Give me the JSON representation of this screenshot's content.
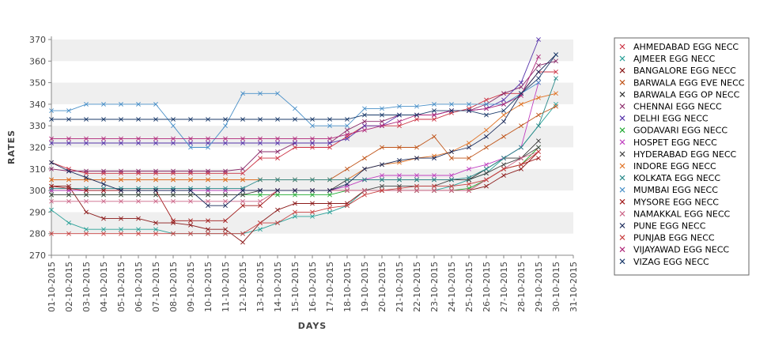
{
  "chart_data": {
    "type": "line",
    "xlabel": "DAYS",
    "ylabel": "RATES",
    "ylim": [
      270,
      370
    ],
    "yticks": [
      270,
      280,
      290,
      300,
      310,
      320,
      330,
      340,
      350,
      360,
      370
    ],
    "grid": "alternating horizontal bands",
    "legend_position": "right",
    "categories": [
      "01-10-2015",
      "02-10-2015",
      "03-10-2015",
      "04-10-2015",
      "05-10-2015",
      "06-10-2015",
      "07-10-2015",
      "08-10-2015",
      "09-10-2015",
      "10-10-2015",
      "11-10-2015",
      "12-10-2015",
      "13-10-2015",
      "14-10-2015",
      "15-10-2015",
      "16-10-2015",
      "17-10-2015",
      "18-10-2015",
      "19-10-2015",
      "20-10-2015",
      "21-10-2015",
      "22-10-2015",
      "23-10-2015",
      "24-10-2015",
      "25-10-2015",
      "26-10-2015",
      "27-10-2015",
      "28-10-2015",
      "29-10-2015",
      "30-10-2015",
      "31-10-2015"
    ],
    "series": [
      {
        "name": "AHMEDABAD EGG NECC",
        "color": "#cc3344",
        "values": [
          313,
          310,
          308,
          308,
          308,
          308,
          308,
          308,
          308,
          308,
          308,
          308,
          315,
          315,
          320,
          320,
          320,
          325,
          330,
          330,
          330,
          333,
          333,
          336,
          338,
          342,
          345,
          345,
          355,
          355,
          null
        ]
      },
      {
        "name": "AJMEER EGG NECC",
        "color": "#2aa198",
        "values": [
          291,
          285,
          282,
          282,
          282,
          282,
          282,
          280,
          280,
          280,
          280,
          280,
          282,
          285,
          288,
          288,
          290,
          293,
          300,
          300,
          300,
          300,
          300,
          302,
          305,
          308,
          315,
          320,
          330,
          340,
          null
        ]
      },
      {
        "name": "BANGALORE EGG NECC",
        "color": "#8b1a1a",
        "values": [
          302,
          302,
          290,
          287,
          287,
          287,
          285,
          285,
          284,
          282,
          282,
          276,
          285,
          291,
          294,
          294,
          294,
          294,
          300,
          300,
          300,
          300,
          300,
          300,
          300,
          302,
          307,
          310,
          318,
          null,
          null
        ]
      },
      {
        "name": "BARWALA EGG EVE NECC",
        "color": "#c0551a",
        "values": [
          305,
          305,
          305,
          305,
          305,
          305,
          305,
          305,
          305,
          305,
          305,
          305,
          305,
          305,
          305,
          305,
          305,
          310,
          315,
          320,
          320,
          320,
          325,
          315,
          315,
          320,
          325,
          330,
          335,
          339,
          null
        ]
      },
      {
        "name": "BARWALA EGG OP NECC",
        "color": "#333333",
        "values": [
          300,
          300,
          300,
          300,
          300,
          300,
          300,
          300,
          300,
          300,
          300,
          300,
          300,
          300,
          300,
          300,
          300,
          305,
          305,
          305,
          305,
          305,
          305,
          305,
          305,
          310,
          315,
          315,
          323,
          null,
          null
        ]
      },
      {
        "name": "CHENNAI EGG NECC",
        "color": "#8a2a6a",
        "values": [
          310,
          309,
          309,
          309,
          309,
          309,
          309,
          309,
          309,
          309,
          309,
          310,
          318,
          318,
          322,
          322,
          322,
          328,
          332,
          332,
          335,
          335,
          335,
          337,
          337,
          340,
          345,
          348,
          358,
          360,
          null
        ]
      },
      {
        "name": "DELHI EGG NECC",
        "color": "#5533aa",
        "values": [
          322,
          322,
          322,
          322,
          322,
          322,
          322,
          322,
          322,
          322,
          322,
          322,
          322,
          322,
          322,
          322,
          322,
          324,
          330,
          330,
          335,
          335,
          335,
          337,
          337,
          338,
          342,
          350,
          370,
          null,
          null
        ]
      },
      {
        "name": "GODAVARI EGG NECC",
        "color": "#22aa33",
        "values": [
          298,
          298,
          298,
          298,
          298,
          298,
          298,
          298,
          298,
          298,
          298,
          298,
          298,
          298,
          298,
          298,
          298,
          300,
          300,
          300,
          300,
          300,
          300,
          300,
          301,
          305,
          310,
          312,
          320,
          null,
          null
        ]
      },
      {
        "name": "HOSPET EGG NECC",
        "color": "#c040c0",
        "values": [
          300,
          300,
          300,
          300,
          300,
          300,
          300,
          300,
          300,
          300,
          300,
          300,
          300,
          300,
          300,
          300,
          300,
          302,
          305,
          307,
          307,
          307,
          307,
          307,
          310,
          312,
          315,
          320,
          350,
          null,
          null
        ]
      },
      {
        "name": "HYDERABAD EGG NECC",
        "color": "#444444",
        "values": [
          298,
          298,
          298,
          298,
          298,
          298,
          298,
          298,
          298,
          298,
          298,
          298,
          300,
          300,
          300,
          300,
          300,
          300,
          300,
          302,
          302,
          302,
          302,
          305,
          305,
          308,
          312,
          315,
          320,
          null,
          null
        ]
      },
      {
        "name": "INDORE EGG NECC",
        "color": "#e07020",
        "values": [
          305,
          305,
          305,
          305,
          305,
          305,
          305,
          305,
          305,
          305,
          305,
          305,
          305,
          305,
          305,
          305,
          305,
          305,
          310,
          312,
          313,
          315,
          316,
          318,
          322,
          328,
          335,
          340,
          343,
          345,
          null
        ]
      },
      {
        "name": "KOLKATA EGG NECC",
        "color": "#2a8a8a",
        "values": [
          301,
          301,
          301,
          301,
          301,
          301,
          301,
          301,
          301,
          301,
          301,
          301,
          305,
          305,
          305,
          305,
          305,
          305,
          305,
          305,
          305,
          305,
          305,
          305,
          306,
          310,
          315,
          320,
          330,
          352,
          null
        ]
      },
      {
        "name": "MUMBAI EGG NECC",
        "color": "#4a90c8",
        "values": [
          337,
          337,
          340,
          340,
          340,
          340,
          340,
          330,
          320,
          320,
          330,
          345,
          345,
          345,
          338,
          330,
          330,
          330,
          338,
          338,
          339,
          339,
          340,
          340,
          340,
          340,
          340,
          345,
          350,
          null,
          null
        ]
      },
      {
        "name": "MYSORE EGG NECC",
        "color": "#a01818",
        "values": [
          302,
          301,
          300,
          300,
          300,
          300,
          300,
          286,
          286,
          286,
          286,
          293,
          293,
          300,
          300,
          300,
          300,
          300,
          300,
          300,
          300,
          300,
          300,
          300,
          300,
          305,
          310,
          312,
          315,
          null,
          null
        ]
      },
      {
        "name": "NAMAKKAL EGG NECC",
        "color": "#cc6688",
        "values": [
          295,
          295,
          295,
          295,
          295,
          295,
          295,
          295,
          295,
          295,
          295,
          295,
          295,
          300,
          300,
          300,
          300,
          300,
          300,
          300,
          300,
          300,
          300,
          300,
          300,
          305,
          310,
          315,
          318,
          null,
          null
        ]
      },
      {
        "name": "PUNE EGG NECC",
        "color": "#1a2a5a",
        "values": [
          313,
          309,
          306,
          303,
          300,
          300,
          300,
          300,
          300,
          293,
          293,
          300,
          300,
          300,
          300,
          300,
          300,
          303,
          310,
          312,
          314,
          315,
          315,
          318,
          320,
          325,
          332,
          345,
          355,
          363,
          null
        ]
      },
      {
        "name": "PUNJAB EGG NECC",
        "color": "#c84040",
        "values": [
          280,
          280,
          280,
          280,
          280,
          280,
          280,
          280,
          280,
          280,
          280,
          280,
          285,
          285,
          290,
          290,
          292,
          293,
          298,
          300,
          301,
          302,
          302,
          302,
          303,
          305,
          310,
          312,
          318,
          null,
          null
        ]
      },
      {
        "name": "VIJAYAWAD EGG NECC",
        "color": "#b0287a",
        "values": [
          324,
          324,
          324,
          324,
          324,
          324,
          324,
          324,
          324,
          324,
          324,
          324,
          324,
          324,
          324,
          324,
          324,
          326,
          328,
          330,
          332,
          335,
          335,
          337,
          337,
          338,
          340,
          344,
          362,
          null,
          null
        ]
      },
      {
        "name": "VIZAG EGG NECC",
        "color": "#1a3a6a",
        "values": [
          333,
          333,
          333,
          333,
          333,
          333,
          333,
          333,
          333,
          333,
          333,
          333,
          333,
          333,
          333,
          333,
          333,
          333,
          335,
          335,
          335,
          335,
          337,
          337,
          337,
          335,
          337,
          345,
          352,
          363,
          null
        ]
      }
    ]
  }
}
